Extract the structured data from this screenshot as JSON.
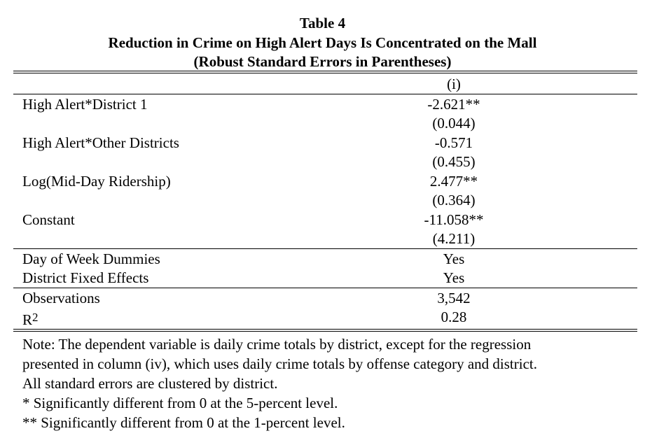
{
  "table": {
    "number": "Table 4",
    "title": "Reduction in Crime on High Alert Days Is Concentrated on the Mall",
    "subtitle": "(Robust Standard Errors in Parentheses)",
    "column_header": "(i)",
    "coefficients": [
      {
        "label": "High Alert*District 1",
        "estimate": "-2.621**",
        "se": "(0.044)"
      },
      {
        "label": "High Alert*Other Districts",
        "estimate": "-0.571",
        "se": "(0.455)"
      },
      {
        "label": "Log(Mid-Day Ridership)",
        "estimate": "2.477**",
        "se": "(0.364)"
      },
      {
        "label": "Constant",
        "estimate": "-11.058**",
        "se": "(4.211)"
      }
    ],
    "controls": [
      {
        "label": "Day of Week Dummies",
        "value": "Yes"
      },
      {
        "label": "District Fixed Effects",
        "value": "Yes"
      }
    ],
    "stats": [
      {
        "label": "Observations",
        "value": "3,542"
      },
      {
        "label": "R",
        "label_sup": "2",
        "value": "0.28"
      }
    ]
  },
  "notes": [
    "Note: The dependent variable is daily crime totals by district, except for the regression",
    "presented in column (iv), which uses daily crime totals by offense category and district.",
    "All standard errors are clustered by district.",
    "* Significantly different from 0 at the 5-percent level.",
    "** Significantly different from 0 at the 1-percent level."
  ]
}
